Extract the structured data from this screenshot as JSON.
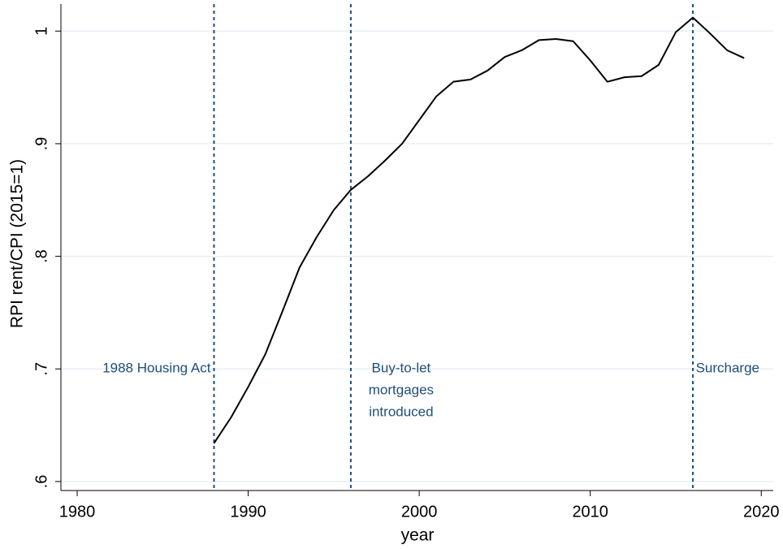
{
  "chart_data": {
    "type": "line",
    "x_label": "year",
    "y_label": "RPI rent/CPI (2015=1)",
    "x": [
      1988,
      1989,
      1990,
      1991,
      1992,
      1993,
      1994,
      1995,
      1996,
      1997,
      1998,
      1999,
      2000,
      2001,
      2002,
      2003,
      2004,
      2005,
      2006,
      2007,
      2008,
      2009,
      2010,
      2011,
      2012,
      2013,
      2014,
      2015,
      2016,
      2017,
      2018,
      2019
    ],
    "series": [
      {
        "color": "#000000",
        "values": [
          0.634,
          0.657,
          0.684,
          0.713,
          0.751,
          0.79,
          0.817,
          0.841,
          0.859,
          0.871,
          0.885,
          0.9,
          0.921,
          0.942,
          0.955,
          0.957,
          0.965,
          0.977,
          0.983,
          0.992,
          0.993,
          0.991,
          0.974,
          0.955,
          0.959,
          0.96,
          0.97,
          0.999,
          1.012,
          0.998,
          0.983,
          0.976
        ]
      }
    ],
    "xlim": [
      1979.05,
      2020.7
    ],
    "ylim": [
      0.592,
      1.024
    ],
    "xticks": [
      1980,
      1990,
      2000,
      2010,
      2020
    ],
    "yticks": [
      {
        "value": 0.6,
        "label": ".6"
      },
      {
        "value": 0.7,
        "label": ".7"
      },
      {
        "value": 0.8,
        "label": ".8"
      },
      {
        "value": 0.9,
        "label": ".9"
      },
      1
    ],
    "grid": true,
    "vlines": [
      {
        "x": 1988,
        "color": "#1f4e79",
        "label": [
          "1988 Housing Act"
        ]
      },
      {
        "x": 1996,
        "color": "#1f4e79",
        "label": [
          "Buy-to-let",
          "mortgages",
          "introduced"
        ]
      },
      {
        "x": 2016,
        "color": "#1f4e79",
        "label": [
          "Surcharge"
        ]
      }
    ]
  }
}
